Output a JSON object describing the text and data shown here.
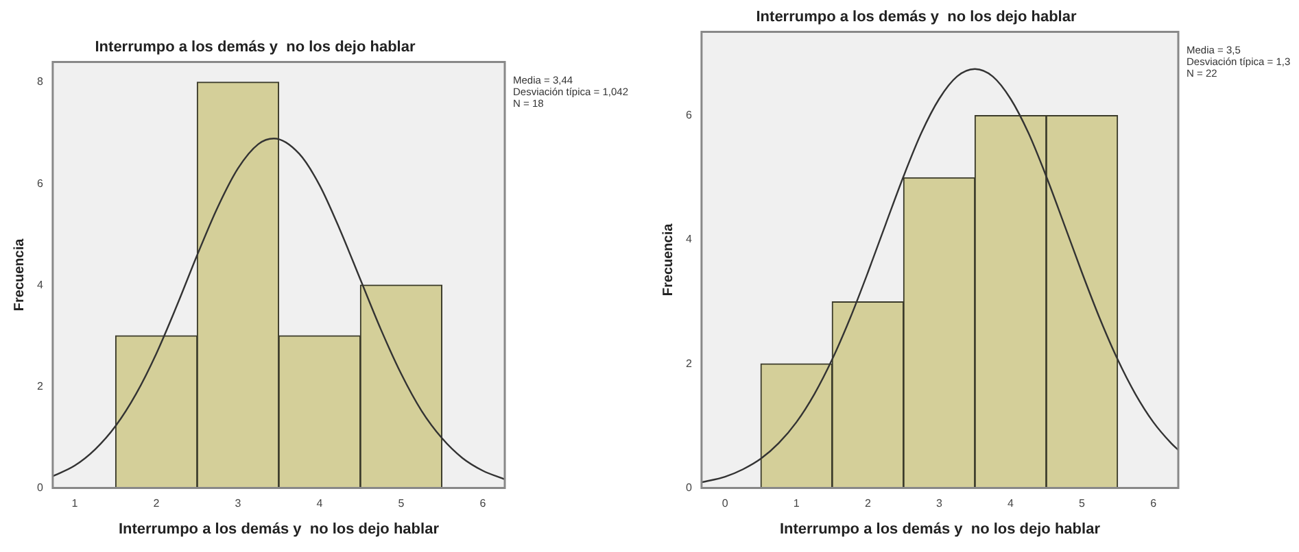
{
  "chart_data": [
    {
      "type": "histogram",
      "title": "Interrumpo a los demás y  no los dejo hablar",
      "xlabel": "Interrumpo a los demás y  no los dejo hablar",
      "ylabel": "Frecuencia",
      "bins": [
        1.5,
        2.5,
        3.5,
        4.5,
        5.5
      ],
      "values": [
        3,
        8,
        3,
        4
      ],
      "color": "#d4cf99",
      "series": [
        {
          "type": "line",
          "color": "#333333",
          "marker": "none",
          "x": [
            0.73,
            1,
            1.25,
            1.5,
            1.75,
            2,
            2.25,
            2.5,
            2.75,
            3,
            3.25,
            3.44,
            3.75,
            4,
            4.25,
            4.5,
            4.75,
            5,
            5.25,
            5.5,
            5.75,
            6,
            6.27
          ],
          "values": [
            0.23,
            0.44,
            0.76,
            1.22,
            1.85,
            2.65,
            3.59,
            4.59,
            5.53,
            6.3,
            6.78,
            6.89,
            6.59,
            5.97,
            5.09,
            4.11,
            3.13,
            2.25,
            1.52,
            0.98,
            0.59,
            0.34,
            0.17
          ]
        }
      ],
      "xlim": [
        0.73,
        6.27
      ],
      "ylim": [
        0,
        8.4
      ],
      "xticks": [
        1,
        2,
        3,
        4,
        5,
        6
      ],
      "yticks": [
        0,
        2,
        4,
        6,
        8
      ],
      "grid": false,
      "legend": false,
      "annotations": [
        "Media = 3,44",
        "Desviación típica = 1,042",
        "N = 18"
      ]
    },
    {
      "type": "histogram",
      "title": "Interrumpo a los demás y  no los dejo hablar",
      "xlabel": "Interrumpo a los demás y  no los dejo hablar",
      "ylabel": "Frecuencia",
      "bins": [
        0.5,
        1.5,
        2.5,
        3.5,
        4.5,
        5.5
      ],
      "values": [
        2,
        3,
        5,
        6,
        6
      ],
      "color": "#d4cf99",
      "series": [
        {
          "type": "line",
          "color": "#333333",
          "marker": "none",
          "x": [
            -0.33,
            0,
            0.25,
            0.5,
            0.75,
            1,
            1.25,
            1.5,
            1.75,
            2,
            2.25,
            2.5,
            2.75,
            3,
            3.25,
            3.5,
            3.75,
            4,
            4.25,
            4.5,
            4.75,
            5,
            5.25,
            5.5,
            5.75,
            6,
            6.25,
            6.35
          ],
          "values": [
            0.09,
            0.18,
            0.3,
            0.47,
            0.72,
            1.06,
            1.51,
            2.07,
            2.73,
            3.47,
            4.25,
            5.02,
            5.72,
            6.27,
            6.63,
            6.75,
            6.63,
            6.27,
            5.72,
            5.02,
            4.25,
            3.47,
            2.73,
            2.07,
            1.51,
            1.06,
            0.72,
            0.61
          ]
        }
      ],
      "xlim": [
        -0.33,
        6.35
      ],
      "ylim": [
        0,
        7.35
      ],
      "xticks": [
        0,
        1,
        2,
        3,
        4,
        5,
        6
      ],
      "yticks": [
        0,
        2,
        4,
        6
      ],
      "grid": false,
      "legend": false,
      "annotations": [
        "Media = 3,5",
        "Desviación típica = 1,3",
        "N = 22"
      ]
    }
  ]
}
